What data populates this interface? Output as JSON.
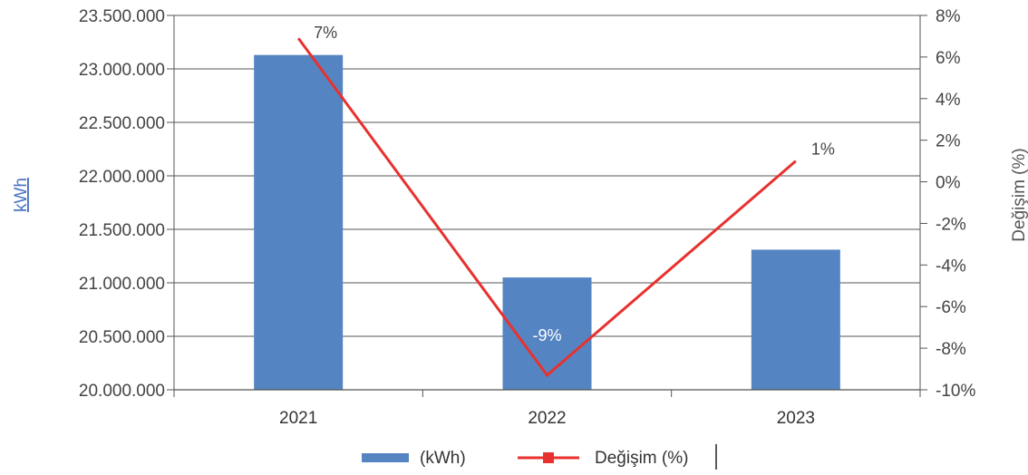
{
  "chart_data": {
    "type": "bar",
    "categories": [
      "2021",
      "2022",
      "2023"
    ],
    "series": [
      {
        "name": "(kWh)",
        "type": "bar",
        "axis": "left",
        "color": "#5584c2",
        "values": [
          23130000,
          21050000,
          21310000
        ]
      },
      {
        "name": "Değişim (%)",
        "type": "line",
        "axis": "right",
        "color": "#e8312f",
        "values": [
          6.9,
          -9.3,
          1.0
        ],
        "labels": [
          "7%",
          "-9%",
          "1%"
        ]
      }
    ],
    "ylabel": "kWh",
    "y2label": "Değişim  (%)",
    "ylim": [
      20000000,
      23500000
    ],
    "y2lim": [
      -10,
      8
    ],
    "yticks": [
      "20.000.000",
      "20.500.000",
      "21.000.000",
      "21.500.000",
      "22.000.000",
      "22.500.000",
      "23.000.000",
      "23.500.000"
    ],
    "y2ticks": [
      "-10%",
      "-8%",
      "-6%",
      "-4%",
      "-2%",
      "0%",
      "2%",
      "4%",
      "6%",
      "8%"
    ],
    "grid": true,
    "legend_position": "bottom",
    "colors": {
      "axis_title_left": "#4a72c4",
      "axis_title_right": "#555555",
      "grid": "#555555"
    }
  }
}
